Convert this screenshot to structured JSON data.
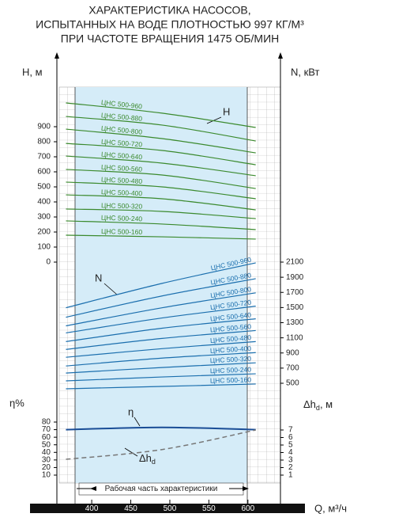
{
  "chart_data": {
    "type": "line",
    "title": [
      "ХАРАКТЕРИСТИКА НАСОСОВ,",
      "ИСПЫТАННЫХ НА ВОДЕ ПЛОТНОСТЬЮ 997 КГ/М³",
      "ПРИ ЧАСТОТЕ ВРАЩЕНИЯ 1475 ОБ/МИН"
    ],
    "x": [
      367,
      490,
      610
    ],
    "xlabel": "Q, м³/ч",
    "xlim": [
      321,
      673
    ],
    "xticks": [
      400,
      450,
      500,
      550,
      600
    ],
    "working_range_label": "Рабочая часть характеристики",
    "axes": {
      "h": {
        "label": "H, м",
        "curve_label": "H",
        "color": "#3b8a2e",
        "lim": [
          0,
          1000
        ],
        "ticks": [
          0,
          100,
          200,
          300,
          400,
          500,
          600,
          700,
          800,
          900
        ],
        "series": [
          {
            "name": "ЦНС 500-960",
            "values": [
              1058,
              990,
              895
            ]
          },
          {
            "name": "ЦНС 500-880",
            "values": [
              968,
              911,
              805
            ]
          },
          {
            "name": "ЦНС 500-800",
            "values": [
              884,
              821,
              726
            ]
          },
          {
            "name": "ЦНС 500-720",
            "values": [
              789,
              742,
              647
            ]
          },
          {
            "name": "ЦНС 500-640",
            "values": [
              705,
              658,
              574
            ]
          },
          {
            "name": "ЦНС 500-560",
            "values": [
              616,
              579,
              489
            ]
          },
          {
            "name": "ЦНС 500-480",
            "values": [
              532,
              500,
              421
            ]
          },
          {
            "name": "ЦНС 500-400",
            "values": [
              447,
              421,
              347
            ]
          },
          {
            "name": "ЦНС 500-320",
            "values": [
              353,
              337,
              289
            ]
          },
          {
            "name": "ЦНС 500-240",
            "values": [
              274,
              253,
              216
            ]
          },
          {
            "name": "ЦНС 500-160",
            "values": [
              179,
              168,
              153
            ]
          }
        ]
      },
      "n": {
        "label": "N, кВт",
        "curve_label": "N",
        "color": "#1b6fae",
        "lim": [
          500,
          2100
        ],
        "ticks": [
          500,
          700,
          900,
          1100,
          1300,
          1500,
          1700,
          1900,
          2100
        ],
        "series": [
          {
            "name": "ЦНС 500-960",
            "values": [
              1497,
              1819,
              2090
            ]
          },
          {
            "name": "ЦНС 500-880",
            "values": [
              1372,
              1653,
              1881
            ]
          },
          {
            "name": "ЦНС 500-800",
            "values": [
              1258,
              1497,
              1694
            ]
          },
          {
            "name": "ЦНС 500-720",
            "values": [
              1165,
              1362,
              1518
            ]
          },
          {
            "name": "ЦНС 500-640",
            "values": [
              1050,
              1227,
              1351
            ]
          },
          {
            "name": "ЦНС 500-560",
            "values": [
              947,
              1092,
              1196
            ]
          },
          {
            "name": "ЦНС 500-480",
            "values": [
              843,
              957,
              1050
            ]
          },
          {
            "name": "ЦНС 500-400",
            "values": [
              728,
              832,
              905
            ]
          },
          {
            "name": "ЦНС 500-320",
            "values": [
              635,
              708,
              770
            ]
          },
          {
            "name": "ЦНС 500-240",
            "values": [
              531,
              583,
              625
            ]
          },
          {
            "name": "ЦНС 500-160",
            "values": [
              427,
              458,
              490
            ]
          }
        ]
      },
      "eta": {
        "label": "η%",
        "curve_label": "η",
        "color": "#1a4d96",
        "lim": [
          10,
          80
        ],
        "ticks": [
          10,
          20,
          30,
          40,
          50,
          60,
          70,
          80
        ],
        "values": [
          70,
          73,
          70
        ]
      },
      "dh": {
        "label": "Δh",
        "label_sub": "d",
        "label_unit": ", м",
        "curve_label": "Δh",
        "curve_label_sub": "d",
        "color": "#777777",
        "lim": [
          1,
          7
        ],
        "ticks": [
          1,
          2,
          3,
          4,
          5,
          6,
          7
        ],
        "values": [
          3.1,
          4.4,
          7.0
        ]
      }
    }
  }
}
